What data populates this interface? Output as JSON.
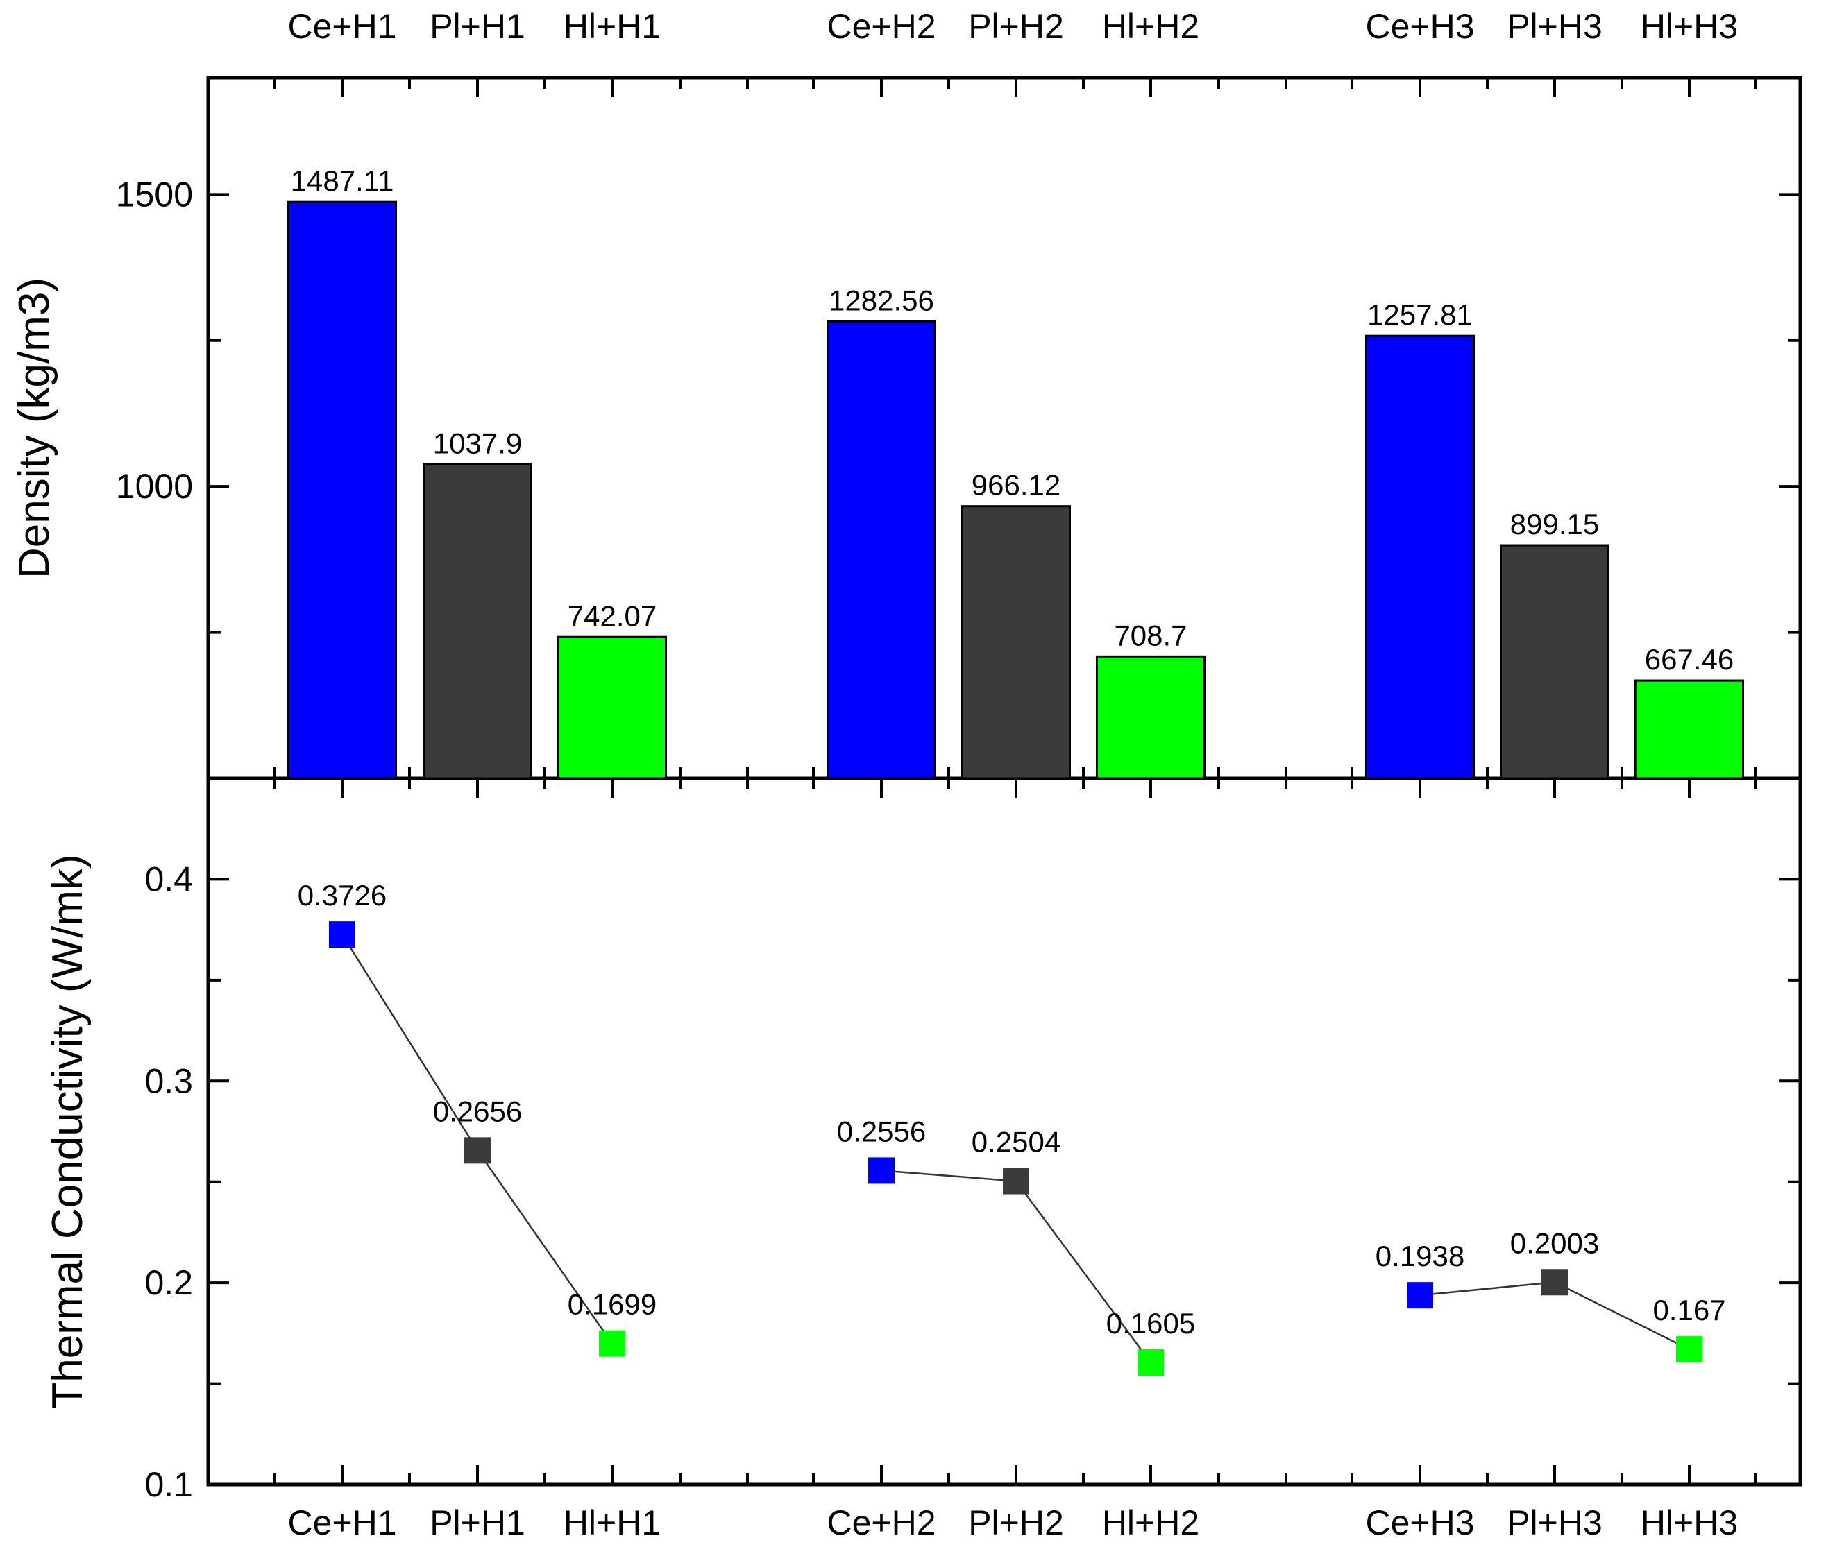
{
  "chart_data": [
    {
      "type": "bar",
      "panel": "top",
      "categories": [
        "Ce+H1",
        "Pl+H1",
        "Hl+H1",
        "Ce+H2",
        "Pl+H2",
        "Hl+H2",
        "Ce+H3",
        "Pl+H3",
        "Hl+H3"
      ],
      "values": [
        1487.11,
        1037.9,
        742.07,
        1282.56,
        966.12,
        708.7,
        1257.81,
        899.15,
        667.46
      ],
      "labels": [
        "1487.11",
        "1037.9",
        "742.07",
        "1282.56",
        "966.12",
        "708.7",
        "1257.81",
        "899.15",
        "667.46"
      ],
      "colors": [
        "#0000FF",
        "#3B3B3B",
        "#00FF00",
        "#0000FF",
        "#3B3B3B",
        "#00FF00",
        "#0000FF",
        "#3B3B3B",
        "#00FF00"
      ],
      "ylabel": "Density (kg/m3)",
      "ylim": [
        500,
        1700
      ],
      "yticks_labeled": [
        "1000",
        "1500"
      ],
      "top_category_labels": [
        "Ce+H1",
        "Pl+H1",
        "Hl+H1",
        "Ce+H2",
        "Pl+H2",
        "Hl+H2",
        "Ce+H3",
        "Pl+H3",
        "Hl+H3"
      ],
      "grid": false
    },
    {
      "type": "line",
      "panel": "bottom",
      "categories": [
        "Ce+H1",
        "Pl+H1",
        "Hl+H1",
        "Ce+H2",
        "Pl+H2",
        "Hl+H2",
        "Ce+H3",
        "Pl+H3",
        "Hl+H3"
      ],
      "values": [
        0.3726,
        0.2656,
        0.1699,
        0.2556,
        0.2504,
        0.1605,
        0.1938,
        0.2003,
        0.167
      ],
      "labels": [
        "0.3726",
        "0.2656",
        "0.1699",
        "0.2556",
        "0.2504",
        "0.1605",
        "0.1938",
        "0.2003",
        "0.167"
      ],
      "colors": [
        "#0000FF",
        "#3B3B3B",
        "#00FF00",
        "#0000FF",
        "#3B3B3B",
        "#00FF00",
        "#0000FF",
        "#3B3B3B",
        "#00FF00"
      ],
      "line_groups": [
        [
          0,
          1,
          2
        ],
        [
          3,
          4,
          5
        ],
        [
          6,
          7,
          8
        ]
      ],
      "ylabel": "Thermal Conductivity (W/mk)",
      "ylim": [
        0.1,
        0.45
      ],
      "yticks_labeled": [
        "0.1",
        "0.2",
        "0.3",
        "0.4"
      ],
      "marker": "square",
      "grid": false
    }
  ]
}
